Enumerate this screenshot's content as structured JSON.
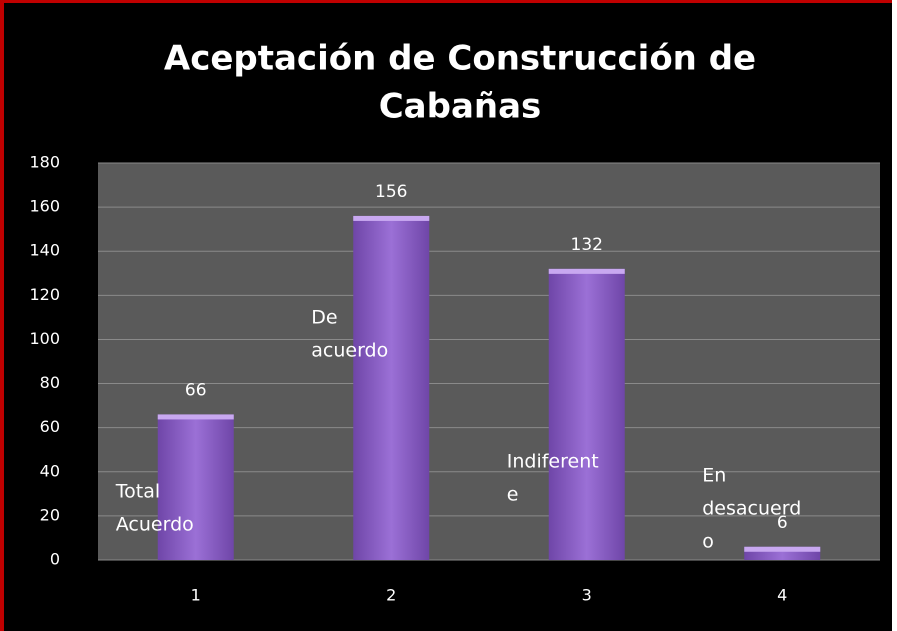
{
  "chart_data": {
    "type": "bar",
    "title": [
      "Aceptación de Construcción de",
      "Cabañas"
    ],
    "categories": [
      "1",
      "2",
      "3",
      "4"
    ],
    "values": [
      66,
      156,
      132,
      6
    ],
    "annotations": [
      [
        "Total",
        "Acuerdo"
      ],
      [
        "De",
        "acuerdo"
      ],
      [
        "Indiferent",
        "e"
      ],
      [
        "En",
        "desacuerd",
        "o"
      ]
    ],
    "color": "#8a5cc4",
    "ylim": [
      0,
      180
    ],
    "yticks": [
      0,
      20,
      40,
      60,
      80,
      100,
      120,
      140,
      160,
      180
    ],
    "grid": true
  }
}
